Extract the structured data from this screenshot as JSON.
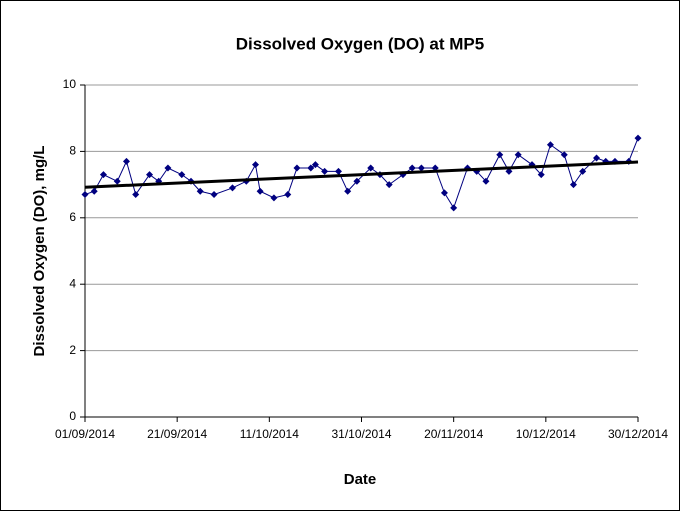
{
  "chart_data": {
    "type": "line",
    "title": "Dissolved Oxygen (DO) at MP5",
    "x_label": "Date",
    "y_label": "Dissolved Oxygen (DO), mg/L",
    "x": [
      "01/09/2014",
      "03/09/2014",
      "05/09/2014",
      "08/09/2014",
      "10/09/2014",
      "12/09/2014",
      "15/09/2014",
      "17/09/2014",
      "19/09/2014",
      "22/09/2014",
      "24/09/2014",
      "26/09/2014",
      "29/09/2014",
      "03/10/2014",
      "06/10/2014",
      "08/10/2014",
      "09/10/2014",
      "12/10/2014",
      "15/10/2014",
      "17/10/2014",
      "20/10/2014",
      "21/10/2014",
      "23/10/2014",
      "26/10/2014",
      "28/10/2014",
      "30/10/2014",
      "02/11/2014",
      "04/11/2014",
      "06/11/2014",
      "09/11/2014",
      "11/11/2014",
      "13/11/2014",
      "16/11/2014",
      "18/11/2014",
      "20/11/2014",
      "23/11/2014",
      "25/11/2014",
      "27/11/2014",
      "30/11/2014",
      "02/12/2014",
      "04/12/2014",
      "07/12/2014",
      "09/12/2014",
      "11/12/2014",
      "14/12/2014",
      "16/12/2014",
      "18/12/2014",
      "21/12/2014",
      "23/12/2014",
      "25/12/2014",
      "28/12/2014",
      "30/12/2014"
    ],
    "series": [
      {
        "color": "#000080",
        "values": [
          6.7,
          6.8,
          7.3,
          7.1,
          7.7,
          6.7,
          7.3,
          7.1,
          7.5,
          7.3,
          7.1,
          6.8,
          6.7,
          6.9,
          7.1,
          7.6,
          6.8,
          6.6,
          6.7,
          7.5,
          7.5,
          7.6,
          7.4,
          7.4,
          6.8,
          7.1,
          7.5,
          7.3,
          7.0,
          7.3,
          7.5,
          7.5,
          7.5,
          6.75,
          6.3,
          7.5,
          7.4,
          7.1,
          7.9,
          7.4,
          7.9,
          7.6,
          7.3,
          8.2,
          7.9,
          7.0,
          7.4,
          7.8,
          7.7,
          7.7,
          7.7,
          8.4
        ]
      }
    ],
    "trendline": {
      "color": "#000000",
      "x": [
        "01/09/2014",
        "30/12/2014"
      ],
      "values": [
        6.92,
        7.68
      ]
    },
    "xlim": [
      "01/09/2014",
      "30/12/2014"
    ],
    "xticks": [
      "01/09/2014",
      "21/09/2014",
      "11/10/2014",
      "31/10/2014",
      "20/11/2014",
      "10/12/2014",
      "30/12/2014"
    ],
    "ylim": [
      0,
      10
    ],
    "yticks": [
      0,
      2,
      4,
      6,
      8,
      10
    ],
    "grid": true
  }
}
